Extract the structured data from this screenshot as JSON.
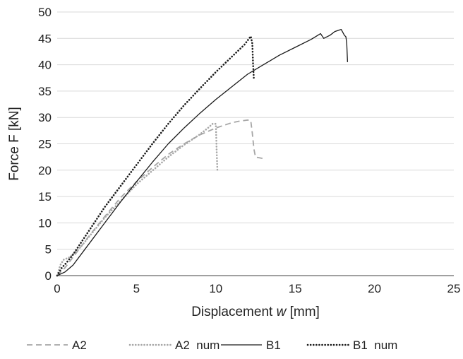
{
  "chart_data": {
    "type": "line",
    "title": "",
    "xlabel_prefix": "Displacement ",
    "xlabel_var": "w",
    "xlabel_suffix": " [mm]",
    "ylabel": "Force F [kN]",
    "xlim": [
      0,
      25
    ],
    "ylim": [
      0,
      50
    ],
    "xticks": [
      0,
      5,
      10,
      15,
      20,
      25
    ],
    "yticks": [
      0,
      5,
      10,
      15,
      20,
      25,
      30,
      35,
      40,
      45,
      50
    ],
    "grid": "horizontal",
    "legend_position": "bottom",
    "series": [
      {
        "name": "A2",
        "style": "dashed",
        "color": "#a6a6a6",
        "points": [
          [
            0,
            0
          ],
          [
            0.5,
            1.5
          ],
          [
            1,
            3.5
          ],
          [
            2,
            7.5
          ],
          [
            3,
            11.2
          ],
          [
            4,
            14.8
          ],
          [
            5,
            17.8
          ],
          [
            6,
            20.5
          ],
          [
            7,
            23
          ],
          [
            8,
            25
          ],
          [
            9,
            26.7
          ],
          [
            10,
            28
          ],
          [
            10.5,
            28.5
          ],
          [
            11,
            29
          ],
          [
            11.5,
            29.3
          ],
          [
            12,
            29.5
          ],
          [
            12.2,
            29.4
          ],
          [
            12.3,
            27
          ],
          [
            12.4,
            24
          ],
          [
            12.5,
            22.5
          ],
          [
            13,
            22.2
          ]
        ]
      },
      {
        "name": "A2  num",
        "style": "dotted",
        "color": "#a6a6a6",
        "points": [
          [
            0,
            0
          ],
          [
            0.2,
            2
          ],
          [
            0.4,
            3
          ],
          [
            0.8,
            3.5
          ],
          [
            1.5,
            5.5
          ],
          [
            3,
            11
          ],
          [
            5,
            17.3
          ],
          [
            7,
            22.5
          ],
          [
            8,
            24.8
          ],
          [
            9,
            26.8
          ],
          [
            9.5,
            28
          ],
          [
            9.8,
            28.8
          ],
          [
            10,
            28.8
          ],
          [
            10.05,
            24
          ],
          [
            10.1,
            20
          ]
        ]
      },
      {
        "name": "B1",
        "style": "solid",
        "color": "#1a1a1a",
        "points": [
          [
            0,
            0
          ],
          [
            0.5,
            0.7
          ],
          [
            1,
            2
          ],
          [
            2,
            6
          ],
          [
            3,
            10
          ],
          [
            4,
            14
          ],
          [
            5,
            17.8
          ],
          [
            6,
            21.5
          ],
          [
            7,
            25
          ],
          [
            8,
            28
          ],
          [
            9,
            30.8
          ],
          [
            10,
            33.4
          ],
          [
            11,
            35.8
          ],
          [
            12,
            38.2
          ],
          [
            13,
            40
          ],
          [
            14,
            41.8
          ],
          [
            15,
            43.3
          ],
          [
            16,
            44.8
          ],
          [
            16.6,
            45.9
          ],
          [
            16.8,
            45
          ],
          [
            17.2,
            45.6
          ],
          [
            17.5,
            46.3
          ],
          [
            17.9,
            46.7
          ],
          [
            18.1,
            45.6
          ],
          [
            18.2,
            45.3
          ],
          [
            18.25,
            44
          ],
          [
            18.3,
            40.5
          ]
        ]
      },
      {
        "name": "B1  num",
        "style": "dotted",
        "color": "#1a1a1a",
        "points": [
          [
            0,
            0
          ],
          [
            0.3,
            1.5
          ],
          [
            0.6,
            2.5
          ],
          [
            1,
            4
          ],
          [
            2,
            8.5
          ],
          [
            3,
            13
          ],
          [
            4,
            17
          ],
          [
            5,
            21
          ],
          [
            6,
            25
          ],
          [
            7,
            28.8
          ],
          [
            8,
            32.3
          ],
          [
            9,
            35.5
          ],
          [
            10,
            38.6
          ],
          [
            11,
            41.5
          ],
          [
            11.8,
            43.8
          ],
          [
            12.2,
            45.4
          ],
          [
            12.3,
            44
          ],
          [
            12.35,
            40
          ],
          [
            12.4,
            37
          ]
        ]
      }
    ]
  }
}
